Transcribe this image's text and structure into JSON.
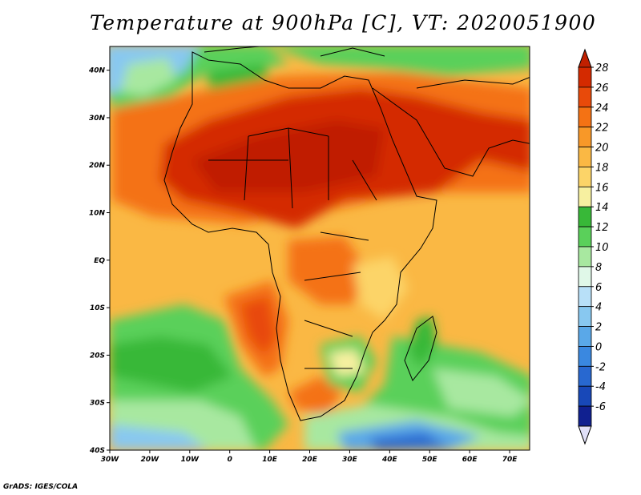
{
  "title": "Temperature at 900hPa [C], VT: 2020051900",
  "credit": "GrADS: IGES/COLA",
  "map": {
    "type": "filled-contour",
    "variable": "Temperature at 900hPa",
    "units": "C",
    "valid_time": "2020051900",
    "lon_range": [
      -30,
      75
    ],
    "lat_range": [
      -40,
      45
    ],
    "lon_ticks": [
      "30W",
      "20W",
      "10W",
      "0",
      "10E",
      "20E",
      "30E",
      "40E",
      "50E",
      "60E",
      "70E"
    ],
    "lat_ticks": [
      "40S",
      "30S",
      "20S",
      "10S",
      "EQ",
      "10N",
      "20N",
      "30N",
      "40N"
    ]
  },
  "colorbar": {
    "levels": [
      "28",
      "26",
      "24",
      "22",
      "20",
      "18",
      "16",
      "14",
      "12",
      "10",
      "8",
      "6",
      "4",
      "2",
      "0",
      "-2",
      "-4",
      "-6"
    ],
    "colors": [
      "#d42a00",
      "#e84a0a",
      "#f47214",
      "#f89828",
      "#fab844",
      "#fcd468",
      "#f7f0a0",
      "#38b838",
      "#5ad05a",
      "#a8e8a0",
      "#e0f8e8",
      "#b8e0f8",
      "#88c8f0",
      "#5aa8e8",
      "#3a88e0",
      "#2868d0",
      "#1848b8",
      "#102090"
    ],
    "top_color": "#c02000",
    "bottom_color": "#e0e0f8"
  }
}
